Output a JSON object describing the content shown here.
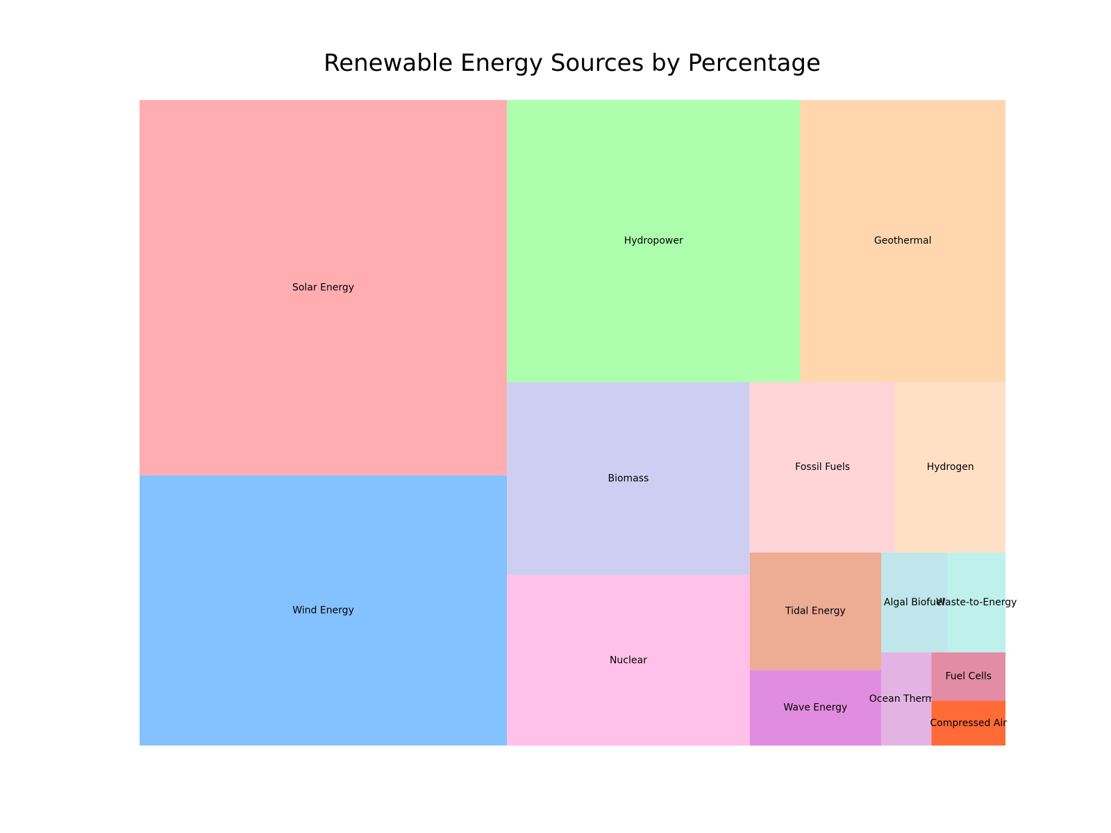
{
  "chart_data": {
    "type": "treemap",
    "title": "Renewable Energy Sources by Percentage",
    "unit": "%",
    "items": [
      {
        "label": "Solar Energy",
        "value": 25.0,
        "color": "#ffadb0"
      },
      {
        "label": "Wind Energy",
        "value": 18.0,
        "color": "#84c2ff"
      },
      {
        "label": "Hydropower",
        "value": 15.0,
        "color": "#aeffad"
      },
      {
        "label": "Geothermal",
        "value": 10.5,
        "color": "#ffd6ae"
      },
      {
        "label": "Biomass",
        "value": 8.5,
        "color": "#cecef2"
      },
      {
        "label": "Nuclear",
        "value": 7.5,
        "color": "#ffc0e9"
      },
      {
        "label": "Fossil Fuels",
        "value": 4.5,
        "color": "#ffd5d7"
      },
      {
        "label": "Hydrogen",
        "value": 3.4,
        "color": "#ffe0c4"
      },
      {
        "label": "Tidal Energy",
        "value": 2.8,
        "color": "#ecad94"
      },
      {
        "label": "Wave Energy",
        "value": 1.8,
        "color": "#e18ddf"
      },
      {
        "label": "Waste-to-Energy",
        "value": 1.05,
        "color": "#bef0ec"
      },
      {
        "label": "Ocean Thermal",
        "value": 0.85,
        "color": "#e3b4e3"
      },
      {
        "label": "Algal Biofuel",
        "value": 1.2,
        "color": "#bfe6ea"
      },
      {
        "label": "Fuel Cells",
        "value": 0.65,
        "color": "#e28ca5"
      },
      {
        "label": "Compressed Air",
        "value": 0.6,
        "color": "#ff6b36"
      }
    ]
  }
}
